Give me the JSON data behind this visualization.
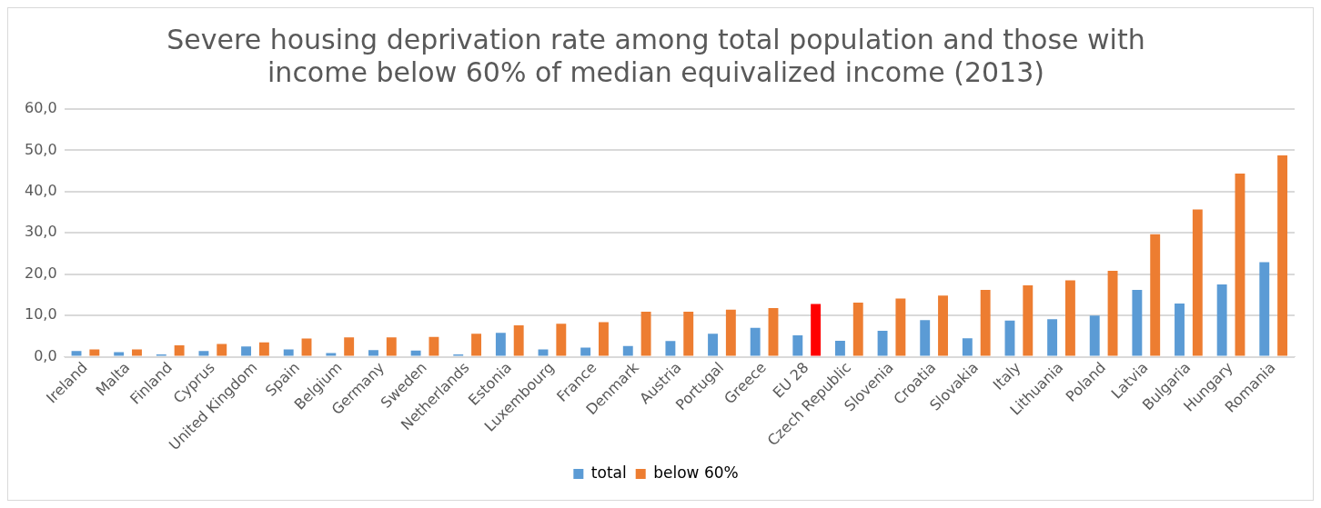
{
  "chart_data": {
    "type": "bar",
    "title": [
      "Severe housing deprivation rate among total population and those with",
      "income below 60% of median equivalized income (2013)"
    ],
    "categories": [
      "Ireland",
      "Malta",
      "Finland",
      "Cyprus",
      "United Kingdom",
      "Spain",
      "Belgium",
      "Germany",
      "Sweden",
      "Netherlands",
      "Estonia",
      "Luxembourg",
      "France",
      "Denmark",
      "Austria",
      "Portugal",
      "Greece",
      "EU 28",
      "Czech Republic",
      "Slovenia",
      "Croatia",
      "Slovakia",
      "Italy",
      "Lithuania",
      "Poland",
      "Latvia",
      "Bulgaria",
      "Hungary",
      "Romania"
    ],
    "series": [
      {
        "name": "total",
        "color": "#5b9bd5",
        "values": [
          1.4,
          1.1,
          0.6,
          1.4,
          2.5,
          1.8,
          0.9,
          1.6,
          1.5,
          0.6,
          5.8,
          1.8,
          2.2,
          2.6,
          3.8,
          5.6,
          7.0,
          5.2,
          3.9,
          6.3,
          8.9,
          4.5,
          8.8,
          9.1,
          10.0,
          16.2,
          12.9,
          17.5,
          22.9
        ]
      },
      {
        "name": "below 60%",
        "color": "#ed7d31",
        "colors": [
          "#ed7d31",
          "#ed7d31",
          "#ed7d31",
          "#ed7d31",
          "#ed7d31",
          "#ed7d31",
          "#ed7d31",
          "#ed7d31",
          "#ed7d31",
          "#ed7d31",
          "#ed7d31",
          "#ed7d31",
          "#ed7d31",
          "#ed7d31",
          "#ed7d31",
          "#ed7d31",
          "#ed7d31",
          "#ff0000",
          "#ed7d31",
          "#ed7d31",
          "#ed7d31",
          "#ed7d31",
          "#ed7d31",
          "#ed7d31",
          "#ed7d31",
          "#ed7d31",
          "#ed7d31",
          "#ed7d31",
          "#ed7d31"
        ],
        "values": [
          1.8,
          1.8,
          2.8,
          3.1,
          3.5,
          4.4,
          4.7,
          4.7,
          4.8,
          5.6,
          7.6,
          8.0,
          8.4,
          10.9,
          10.9,
          11.4,
          11.8,
          12.8,
          13.1,
          14.1,
          14.8,
          16.2,
          17.3,
          18.5,
          20.8,
          29.7,
          35.7,
          44.4,
          48.8
        ]
      }
    ],
    "ylim": [
      0,
      60
    ],
    "yticks": [
      {
        "value": 0,
        "label": "0,0"
      },
      {
        "value": 10,
        "label": "10,0"
      },
      {
        "value": 20,
        "label": "20,0"
      },
      {
        "value": 30,
        "label": "30,0"
      },
      {
        "value": 40,
        "label": "40,0"
      },
      {
        "value": 50,
        "label": "50,0"
      },
      {
        "value": 60,
        "label": "60,0"
      }
    ],
    "grid": "y",
    "legend": "bottom"
  }
}
